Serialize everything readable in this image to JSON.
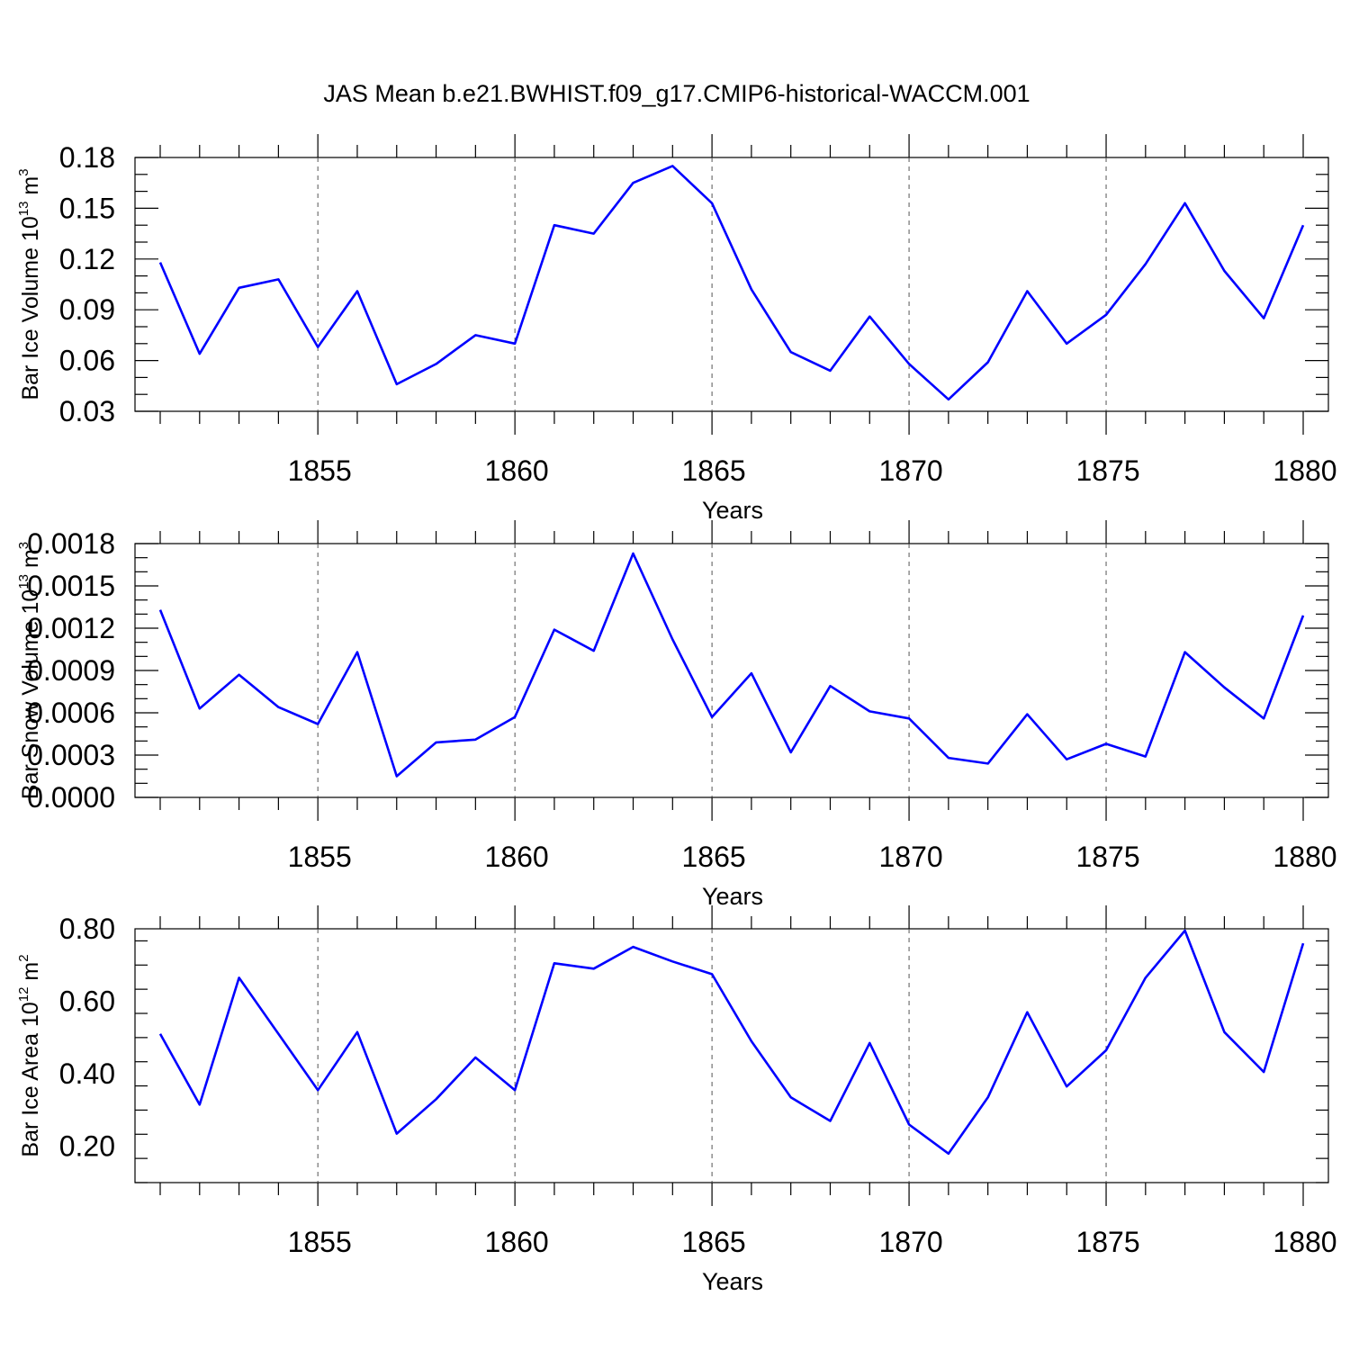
{
  "title": "JAS Mean b.e21.BWHIST.f09_g17.CMIP6-historical-WACCM.001",
  "colors": {
    "series": "#0000ff",
    "axis": "#000000",
    "grid": "#555555"
  },
  "chart_data": [
    {
      "type": "line",
      "ylabel_main": "Bar Ice Volume 10",
      "ylabel_exp": "13",
      "ylabel_unit": " m",
      "ylabel_unit_exp": "3",
      "xlabel": "Years",
      "xlim": [
        1851,
        1880
      ],
      "ylim": [
        0.03,
        0.18
      ],
      "yticks": [
        0.03,
        0.06,
        0.09,
        0.12,
        0.15,
        0.18
      ],
      "yticklabels": [
        "0.03",
        "0.06",
        "0.09",
        "0.12",
        "0.15",
        "0.18"
      ],
      "xticks": [
        1855,
        1860,
        1865,
        1870,
        1875,
        1880
      ],
      "xticklabels": [
        "1855",
        "1860",
        "1865",
        "1870",
        "1875",
        "1880"
      ],
      "grid": "dashed vertical at labeled years",
      "x": [
        1851,
        1852,
        1853,
        1854,
        1855,
        1856,
        1857,
        1858,
        1859,
        1860,
        1861,
        1862,
        1863,
        1864,
        1865,
        1866,
        1867,
        1868,
        1869,
        1870,
        1871,
        1872,
        1873,
        1874,
        1875,
        1876,
        1877,
        1878,
        1879,
        1880
      ],
      "values": [
        0.118,
        0.064,
        0.103,
        0.108,
        0.068,
        0.101,
        0.046,
        0.058,
        0.075,
        0.07,
        0.14,
        0.135,
        0.165,
        0.175,
        0.153,
        0.102,
        0.065,
        0.054,
        0.086,
        0.058,
        0.037,
        0.059,
        0.101,
        0.07,
        0.087,
        0.117,
        0.153,
        0.113,
        0.085,
        0.14
      ]
    },
    {
      "type": "line",
      "ylabel_main": "Bar Snow Volume 10",
      "ylabel_exp": "13",
      "ylabel_unit": " m",
      "ylabel_unit_exp": "3",
      "xlabel": "Years",
      "xlim": [
        1851,
        1880
      ],
      "ylim": [
        0.0,
        0.0018
      ],
      "yticks": [
        0.0,
        0.0003,
        0.0006,
        0.0009,
        0.0012,
        0.0015,
        0.0018
      ],
      "yticklabels": [
        "0.0000",
        "0.0003",
        "0.0006",
        "0.0009",
        "0.0012",
        "0.0015",
        "0.0018"
      ],
      "xticks": [
        1855,
        1860,
        1865,
        1870,
        1875,
        1880
      ],
      "xticklabels": [
        "1855",
        "1860",
        "1865",
        "1870",
        "1875",
        "1880"
      ],
      "grid": "dashed vertical at labeled years",
      "x": [
        1851,
        1852,
        1853,
        1854,
        1855,
        1856,
        1857,
        1858,
        1859,
        1860,
        1861,
        1862,
        1863,
        1864,
        1865,
        1866,
        1867,
        1868,
        1869,
        1870,
        1871,
        1872,
        1873,
        1874,
        1875,
        1876,
        1877,
        1878,
        1879,
        1880
      ],
      "values": [
        0.00133,
        0.00063,
        0.00087,
        0.00064,
        0.00052,
        0.00103,
        0.00015,
        0.00039,
        0.00041,
        0.00057,
        0.00119,
        0.00104,
        0.00173,
        0.00112,
        0.00057,
        0.00088,
        0.00032,
        0.00079,
        0.00061,
        0.00056,
        0.00028,
        0.00024,
        0.00059,
        0.00027,
        0.00038,
        0.00029,
        0.00103,
        0.00078,
        0.00056,
        0.00129
      ]
    },
    {
      "type": "line",
      "ylabel_main": "Bar Ice Area 10",
      "ylabel_exp": "12",
      "ylabel_unit": " m",
      "ylabel_unit_exp": "2",
      "xlabel": "Years",
      "xlim": [
        1851,
        1880
      ],
      "ylim": [
        0.1,
        0.8
      ],
      "yticks": [
        0.2,
        0.4,
        0.6,
        0.8
      ],
      "yticklabels": [
        "0.20",
        "0.40",
        "0.60",
        "0.80"
      ],
      "xticks": [
        1855,
        1860,
        1865,
        1870,
        1875,
        1880
      ],
      "xticklabels": [
        "1855",
        "1860",
        "1865",
        "1870",
        "1875",
        "1880"
      ],
      "grid": "dashed vertical at labeled years",
      "x": [
        1851,
        1852,
        1853,
        1854,
        1855,
        1856,
        1857,
        1858,
        1859,
        1860,
        1861,
        1862,
        1863,
        1864,
        1865,
        1866,
        1867,
        1868,
        1869,
        1870,
        1871,
        1872,
        1873,
        1874,
        1875,
        1876,
        1877,
        1878,
        1879,
        1880
      ],
      "values": [
        0.51,
        0.315,
        0.665,
        0.51,
        0.355,
        0.515,
        0.235,
        0.33,
        0.445,
        0.355,
        0.705,
        0.69,
        0.75,
        0.71,
        0.675,
        0.49,
        0.335,
        0.27,
        0.485,
        0.26,
        0.18,
        0.335,
        0.57,
        0.365,
        0.465,
        0.665,
        0.795,
        0.515,
        0.405,
        0.76
      ]
    }
  ]
}
